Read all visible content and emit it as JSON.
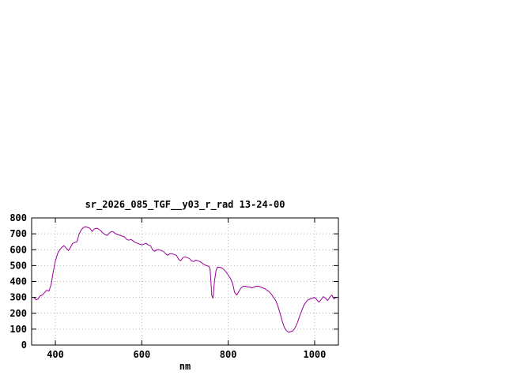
{
  "window": {
    "background": "#ffffff"
  },
  "chart_data": {
    "type": "line",
    "title": "sr_2026_085_TGF__y03_r_rad 13-24-00",
    "xlabel": "nm",
    "ylabel": "",
    "xlim": [
      345,
      1055
    ],
    "ylim": [
      0,
      800
    ],
    "xticks": [
      400,
      600,
      800,
      1000
    ],
    "yticks": [
      0,
      100,
      200,
      300,
      400,
      500,
      600,
      700,
      800
    ],
    "grid": true,
    "legend_position": "none",
    "series": [
      {
        "name": "sr_2026_085_TGF__y03_r_rad",
        "color": "#990099",
        "x": [
          350,
          355,
          360,
          365,
          370,
          375,
          380,
          385,
          390,
          395,
          400,
          405,
          410,
          415,
          420,
          425,
          430,
          435,
          440,
          445,
          450,
          455,
          460,
          465,
          470,
          475,
          480,
          485,
          490,
          495,
          500,
          505,
          510,
          515,
          520,
          525,
          530,
          535,
          540,
          545,
          550,
          555,
          560,
          565,
          570,
          575,
          580,
          585,
          590,
          595,
          600,
          605,
          610,
          615,
          620,
          625,
          630,
          635,
          640,
          645,
          650,
          655,
          660,
          665,
          670,
          675,
          680,
          685,
          690,
          695,
          700,
          705,
          710,
          715,
          720,
          725,
          730,
          735,
          740,
          745,
          750,
          755,
          758,
          762,
          765,
          768,
          772,
          775,
          780,
          785,
          790,
          795,
          800,
          805,
          810,
          815,
          820,
          825,
          830,
          835,
          840,
          845,
          850,
          855,
          860,
          865,
          870,
          875,
          880,
          885,
          890,
          895,
          900,
          905,
          910,
          915,
          920,
          925,
          930,
          935,
          940,
          945,
          950,
          955,
          960,
          965,
          970,
          975,
          980,
          985,
          990,
          995,
          1000,
          1005,
          1010,
          1015,
          1020,
          1025,
          1030,
          1035,
          1040,
          1045,
          1050
        ],
        "y": [
          300,
          285,
          290,
          310,
          315,
          330,
          345,
          340,
          380,
          460,
          530,
          575,
          600,
          615,
          625,
          610,
          595,
          615,
          640,
          645,
          650,
          700,
          725,
          740,
          745,
          740,
          735,
          715,
          730,
          735,
          730,
          720,
          705,
          695,
          690,
          705,
          715,
          710,
          700,
          695,
          690,
          685,
          680,
          665,
          660,
          665,
          655,
          645,
          640,
          635,
          630,
          635,
          640,
          630,
          625,
          600,
          590,
          600,
          600,
          595,
          590,
          575,
          565,
          575,
          575,
          570,
          565,
          540,
          530,
          550,
          555,
          550,
          545,
          530,
          525,
          535,
          530,
          525,
          515,
          505,
          500,
          495,
          480,
          310,
          295,
          400,
          470,
          490,
          490,
          485,
          475,
          460,
          440,
          420,
          390,
          330,
          315,
          340,
          360,
          370,
          370,
          365,
          365,
          360,
          365,
          370,
          370,
          365,
          360,
          355,
          345,
          335,
          320,
          300,
          280,
          245,
          200,
          150,
          110,
          90,
          80,
          85,
          90,
          110,
          140,
          180,
          215,
          250,
          270,
          285,
          290,
          295,
          300,
          285,
          270,
          285,
          305,
          295,
          280,
          300,
          315,
          290,
          300
        ]
      }
    ]
  },
  "colors": {
    "line": "#990099",
    "grid": "#b4b4b4",
    "axis": "#000000",
    "background": "#ffffff",
    "text": "#000000"
  }
}
